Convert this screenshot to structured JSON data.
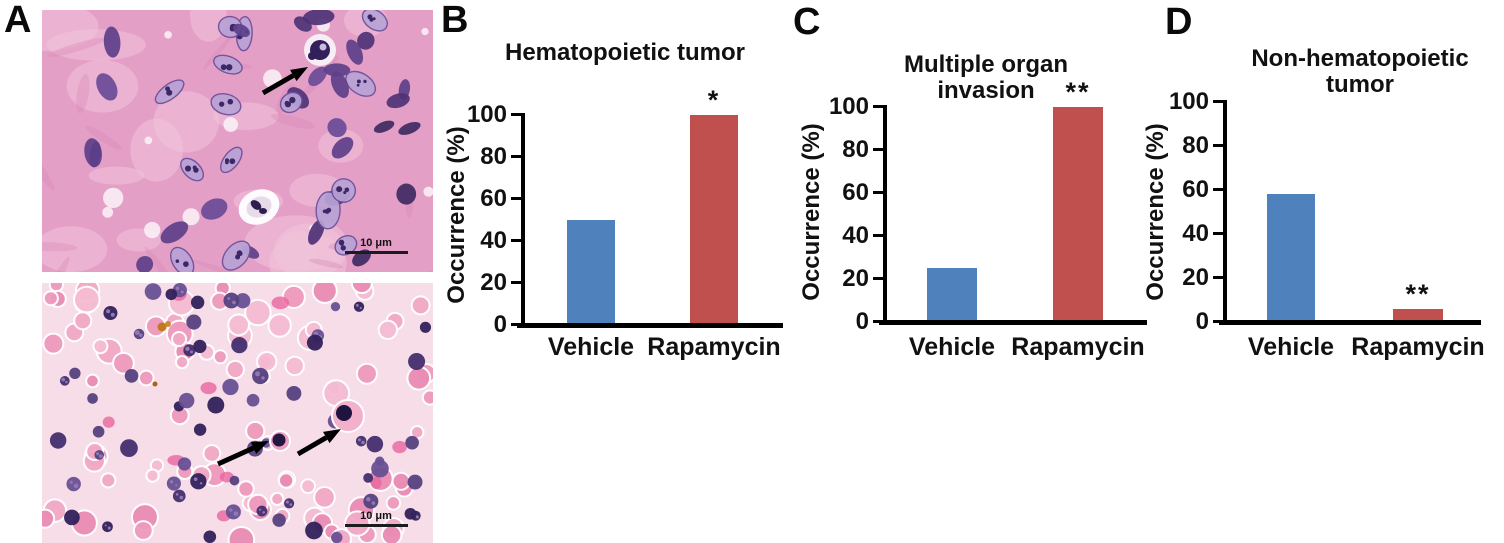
{
  "panels": {
    "a": {
      "label": "A",
      "images": [
        {
          "id": "top-histology",
          "scale_bar_label": "10 μm",
          "arrow_count": 1
        },
        {
          "id": "bottom-histology",
          "scale_bar_label": "10 μm",
          "arrow_count": 2
        }
      ]
    }
  },
  "chart_data": [
    {
      "panel": "B",
      "type": "bar",
      "title": "Hematopoietic tumor",
      "ylabel": "Occurrence (%)",
      "xlabel": "",
      "categories": [
        "Vehicle",
        "Rapamycin"
      ],
      "values": [
        50,
        100
      ],
      "significance": [
        "",
        "*"
      ],
      "ylim": [
        0,
        100
      ],
      "yticks": [
        0,
        20,
        40,
        60,
        80,
        100
      ],
      "bar_colors": [
        "#4f81bd",
        "#c0504d"
      ],
      "grid": false,
      "legend": "none"
    },
    {
      "panel": "C",
      "type": "bar",
      "title": "Multiple organ invasion",
      "ylabel": "Occurrence (%)",
      "xlabel": "",
      "categories": [
        "Vehicle",
        "Rapamycin"
      ],
      "values": [
        25,
        100
      ],
      "significance": [
        "",
        "**"
      ],
      "ylim": [
        0,
        100
      ],
      "yticks": [
        0,
        20,
        40,
        60,
        80,
        100
      ],
      "bar_colors": [
        "#4f81bd",
        "#c0504d"
      ],
      "grid": false,
      "legend": "none"
    },
    {
      "panel": "D",
      "type": "bar",
      "title": "Non-hematopoietic tumor",
      "ylabel": "Occurrence (%)",
      "xlabel": "",
      "categories": [
        "Vehicle",
        "Rapamycin"
      ],
      "values": [
        58,
        6
      ],
      "significance": [
        "",
        "**"
      ],
      "ylim": [
        0,
        100
      ],
      "yticks": [
        0,
        20,
        40,
        60,
        80,
        100
      ],
      "bar_colors": [
        "#4f81bd",
        "#c0504d"
      ],
      "grid": false,
      "legend": "none"
    }
  ],
  "colors": {
    "bar_blue": "#4f81bd",
    "bar_red": "#c0504d",
    "axis": "#000000"
  }
}
